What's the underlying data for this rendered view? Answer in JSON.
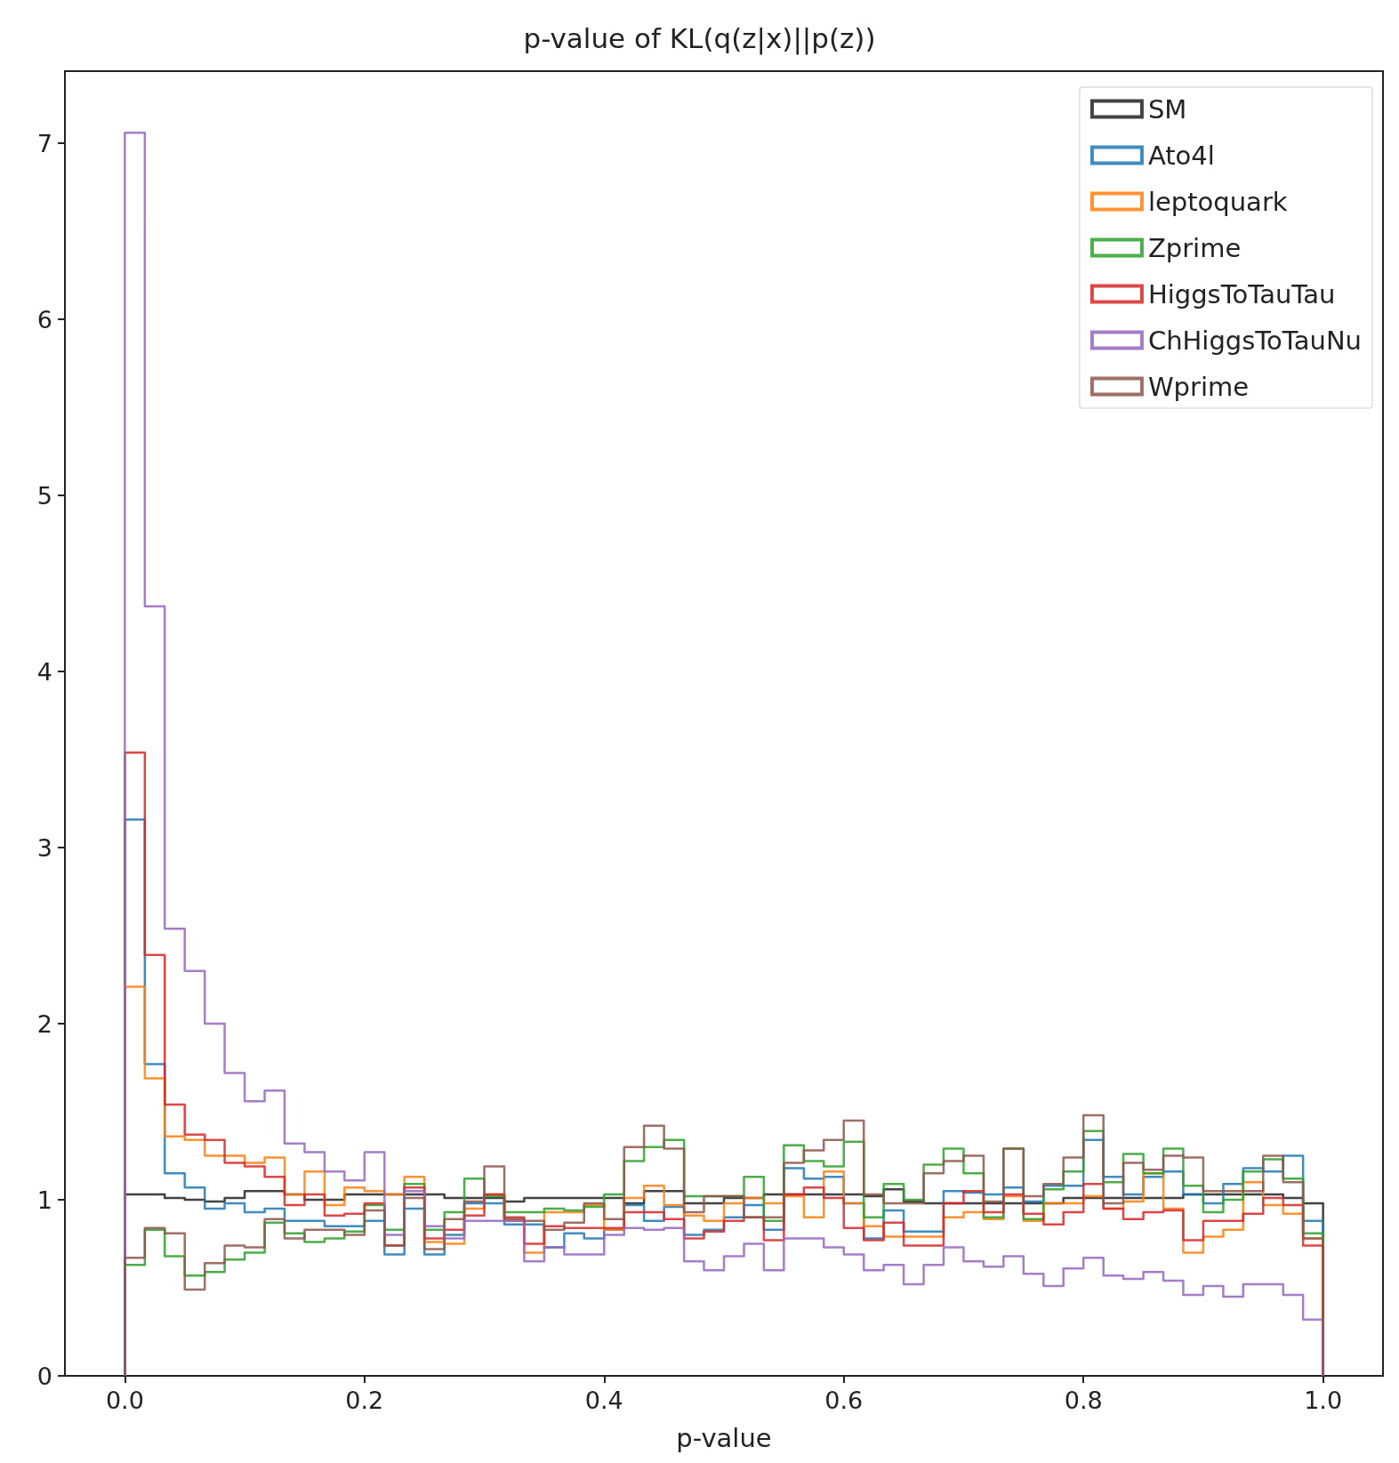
{
  "chart_data": {
    "type": "histogram",
    "title": "p-value of KL(q(z|x)||p(z))",
    "xlabel": "p-value",
    "bins": [
      0,
      0.0167,
      0.0333,
      0.05,
      0.0667,
      0.0833,
      0.1,
      0.1167,
      0.1333,
      0.15,
      0.1667,
      0.1833,
      0.2,
      0.2167,
      0.2333,
      0.25,
      0.2667,
      0.2833,
      0.3,
      0.3167,
      0.3333,
      0.35,
      0.3667,
      0.3833,
      0.4,
      0.4167,
      0.4333,
      0.45,
      0.4667,
      0.4833,
      0.5,
      0.5167,
      0.5333,
      0.55,
      0.5667,
      0.5833,
      0.6,
      0.6167,
      0.6333,
      0.65,
      0.6667,
      0.6833,
      0.7,
      0.7167,
      0.7333,
      0.75,
      0.7667,
      0.7833,
      0.8,
      0.8167,
      0.8333,
      0.85,
      0.8667,
      0.8833,
      0.9,
      0.9167,
      0.9333,
      0.95,
      0.9667,
      0.9833,
      1
    ],
    "series": [
      {
        "name": "SM",
        "color": "#222222",
        "values": [
          1.03,
          1.03,
          1.01,
          1.0,
          0.99,
          1.01,
          1.05,
          1.05,
          1.03,
          1.0,
          1.0,
          1.03,
          1.03,
          1.03,
          1.03,
          1.03,
          1.01,
          1.01,
          1.01,
          0.99,
          1.01,
          1.01,
          1.01,
          1.01,
          1.01,
          0.98,
          1.05,
          1.05,
          0.98,
          0.98,
          1.01,
          1.01,
          1.03,
          1.03,
          1.03,
          1.03,
          1.03,
          1.02,
          1.06,
          0.99,
          0.98,
          0.98,
          0.98,
          0.98,
          0.98,
          0.98,
          0.98,
          1.01,
          1.01,
          1.01,
          1.01,
          1.01,
          1.01,
          1.03,
          1.03,
          1.03,
          1.03,
          1.03,
          1.01,
          0.98
        ]
      },
      {
        "name": "Ato4l",
        "color": "#1f77b4",
        "values": [
          3.16,
          1.77,
          1.15,
          1.07,
          0.95,
          0.98,
          0.93,
          0.95,
          0.88,
          0.88,
          0.85,
          0.85,
          0.88,
          0.69,
          0.95,
          0.69,
          0.8,
          0.98,
          0.98,
          0.86,
          0.86,
          0.73,
          0.81,
          0.78,
          0.83,
          0.97,
          0.88,
          0.96,
          0.8,
          0.83,
          0.9,
          0.97,
          0.83,
          1.18,
          1.12,
          1.13,
          0.98,
          0.78,
          0.94,
          0.82,
          0.82,
          1.05,
          1.04,
          1.03,
          1.07,
          0.99,
          1.08,
          1.08,
          1.34,
          1.13,
          1.03,
          1.13,
          1.16,
          1.03,
          0.98,
          1.09,
          1.18,
          1.16,
          1.25,
          0.88
        ]
      },
      {
        "name": "leptoquark",
        "color": "#ff7f0e",
        "values": [
          2.21,
          1.69,
          1.36,
          1.34,
          1.25,
          1.25,
          1.21,
          1.24,
          1.03,
          1.16,
          0.97,
          1.07,
          1.05,
          1.03,
          1.13,
          0.76,
          0.75,
          0.95,
          1.03,
          0.88,
          0.7,
          0.93,
          0.93,
          0.97,
          0.83,
          1.01,
          1.08,
          0.97,
          0.91,
          0.88,
          0.98,
          1.01,
          0.98,
          1.02,
          0.9,
          1.16,
          0.98,
          0.85,
          0.79,
          0.79,
          0.79,
          0.9,
          0.93,
          0.89,
          1.02,
          0.88,
          0.98,
          0.98,
          1.02,
          0.95,
          0.99,
          1.15,
          0.95,
          0.7,
          0.79,
          0.83,
          1.1,
          0.97,
          0.92,
          0.78
        ]
      },
      {
        "name": "Zprime",
        "color": "#2ca02c",
        "values": [
          0.63,
          0.83,
          0.68,
          0.57,
          0.59,
          0.66,
          0.7,
          0.87,
          0.81,
          0.76,
          0.78,
          0.82,
          0.97,
          0.83,
          1.09,
          0.83,
          0.93,
          1.12,
          1.02,
          0.93,
          0.93,
          0.95,
          0.94,
          0.96,
          1.03,
          1.22,
          1.3,
          1.34,
          1.02,
          1.02,
          1.02,
          1.13,
          0.88,
          1.31,
          1.22,
          1.19,
          1.33,
          0.9,
          1.09,
          1.0,
          1.2,
          1.29,
          1.15,
          0.9,
          1.29,
          0.89,
          1.06,
          1.16,
          1.39,
          1.1,
          1.26,
          1.15,
          1.29,
          1.08,
          0.93,
          1.0,
          1.16,
          1.23,
          1.12,
          0.81
        ]
      },
      {
        "name": "HiggsToTauTau",
        "color": "#d62728",
        "values": [
          3.54,
          2.39,
          1.54,
          1.37,
          1.34,
          1.21,
          1.19,
          1.13,
          0.97,
          1.03,
          0.91,
          0.92,
          0.98,
          0.74,
          1.07,
          0.78,
          0.83,
          0.91,
          1.03,
          0.9,
          0.75,
          0.85,
          0.84,
          0.84,
          0.84,
          0.93,
          0.93,
          0.89,
          0.78,
          0.82,
          0.88,
          0.9,
          0.77,
          1.03,
          1.07,
          1.01,
          0.84,
          0.77,
          0.87,
          0.74,
          0.74,
          0.98,
          1.05,
          0.93,
          1.03,
          0.92,
          0.86,
          0.93,
          1.09,
          0.95,
          0.89,
          0.93,
          0.94,
          0.77,
          0.88,
          0.88,
          0.92,
          1.01,
          0.97,
          0.74
        ]
      },
      {
        "name": "ChHiggsToTauNu",
        "color": "#9467bd",
        "values": [
          7.06,
          4.37,
          2.54,
          2.3,
          2.0,
          1.72,
          1.56,
          1.62,
          1.32,
          1.27,
          1.16,
          1.11,
          1.27,
          0.8,
          1.05,
          0.85,
          0.78,
          0.88,
          0.88,
          0.88,
          0.65,
          0.73,
          0.69,
          0.69,
          0.8,
          0.84,
          0.83,
          0.84,
          0.65,
          0.6,
          0.68,
          0.75,
          0.6,
          0.78,
          0.78,
          0.73,
          0.69,
          0.6,
          0.63,
          0.52,
          0.63,
          0.73,
          0.65,
          0.62,
          0.68,
          0.58,
          0.51,
          0.61,
          0.67,
          0.57,
          0.55,
          0.59,
          0.54,
          0.46,
          0.51,
          0.45,
          0.52,
          0.52,
          0.46,
          0.32
        ]
      },
      {
        "name": "Wprime",
        "color": "#8c564b",
        "values": [
          0.67,
          0.84,
          0.81,
          0.49,
          0.64,
          0.74,
          0.73,
          0.89,
          0.78,
          0.83,
          0.83,
          0.8,
          0.94,
          0.74,
          1.01,
          0.72,
          0.89,
          0.99,
          1.19,
          0.89,
          0.88,
          0.83,
          0.87,
          0.98,
          0.89,
          1.3,
          1.42,
          1.29,
          0.93,
          1.02,
          1.02,
          0.9,
          0.9,
          1.21,
          1.28,
          1.34,
          1.45,
          1.03,
          0.98,
          0.98,
          1.15,
          1.22,
          1.25,
          0.99,
          1.29,
          1.02,
          1.09,
          1.24,
          1.48,
          0.98,
          1.21,
          1.17,
          1.25,
          1.24,
          1.05,
          1.05,
          1.05,
          1.25,
          1.1,
          0.78
        ]
      }
    ],
    "xlim": [
      -0.05,
      1.05
    ],
    "ylim": [
      0,
      7.41
    ],
    "xticks": [
      {
        "value": 0,
        "label": "0.0"
      },
      0.2,
      0.4,
      0.6,
      0.8,
      {
        "value": 1,
        "label": "1.0"
      }
    ],
    "yticks": [
      0,
      1,
      2,
      3,
      4,
      5,
      6,
      7
    ],
    "legend": "top right",
    "grid": false
  }
}
